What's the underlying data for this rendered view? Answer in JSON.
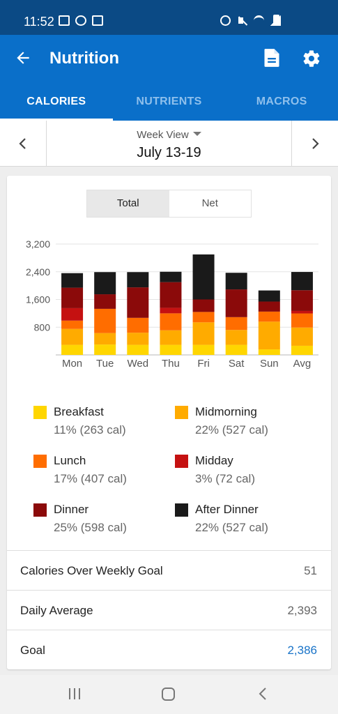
{
  "status": {
    "time": "11:52"
  },
  "app_bar": {
    "title": "Nutrition"
  },
  "tabs": [
    {
      "label": "CALORIES",
      "active": true
    },
    {
      "label": "NUTRIENTS",
      "active": false
    },
    {
      "label": "MACROS",
      "active": false
    }
  ],
  "week_nav": {
    "view_label": "Week View",
    "range": "July 13-19"
  },
  "toggle": {
    "total_label": "Total",
    "net_label": "Net",
    "selected": "Total"
  },
  "chart_data": {
    "type": "bar",
    "stacked": true,
    "categories": [
      "Mon",
      "Tue",
      "Wed",
      "Thu",
      "Fri",
      "Sat",
      "Sun",
      "Avg"
    ],
    "y_ticks": [
      "3,200",
      "2,400",
      "1,600",
      "800"
    ],
    "y_tick_values": [
      3200,
      2400,
      1600,
      800
    ],
    "ylim": [
      0,
      3200
    ],
    "grid": true,
    "series": [
      {
        "name": "Breakfast",
        "color": "#ffd600",
        "values": [
          290,
          300,
          290,
          290,
          290,
          290,
          160,
          263
        ]
      },
      {
        "name": "Midmorning",
        "color": "#ffab00",
        "values": [
          460,
          330,
          350,
          420,
          650,
          430,
          800,
          527
        ]
      },
      {
        "name": "Lunch",
        "color": "#ff6d00",
        "values": [
          240,
          700,
          430,
          490,
          300,
          370,
          290,
          407
        ]
      },
      {
        "name": "Midday",
        "color": "#c51111",
        "values": [
          360,
          0,
          0,
          160,
          0,
          0,
          0,
          72
        ]
      },
      {
        "name": "Dinner",
        "color": "#8b0a0a",
        "values": [
          590,
          420,
          880,
          740,
          360,
          800,
          290,
          598
        ]
      },
      {
        "name": "After Dinner",
        "color": "#1a1a1a",
        "values": [
          420,
          640,
          440,
          300,
          1300,
          480,
          320,
          527
        ]
      }
    ]
  },
  "legend": [
    {
      "name": "Breakfast",
      "value": "11% (263 cal)",
      "color": "#ffd600"
    },
    {
      "name": "Midmorning",
      "value": "22% (527 cal)",
      "color": "#ffab00"
    },
    {
      "name": "Lunch",
      "value": "17% (407 cal)",
      "color": "#ff6d00"
    },
    {
      "name": "Midday",
      "value": "3% (72 cal)",
      "color": "#c51111"
    },
    {
      "name": "Dinner",
      "value": "25% (598 cal)",
      "color": "#8b0a0a"
    },
    {
      "name": "After Dinner",
      "value": "22% (527 cal)",
      "color": "#1a1a1a"
    }
  ],
  "summary": [
    {
      "label": "Calories Over Weekly Goal",
      "value": "51",
      "link": false
    },
    {
      "label": "Daily Average",
      "value": "2,393",
      "link": false
    },
    {
      "label": "Goal",
      "value": "2,386",
      "link": true
    }
  ],
  "colors": {
    "app_bar": "#0a6fc9",
    "status_bar": "#0b4a85",
    "link": "#1873c8"
  }
}
